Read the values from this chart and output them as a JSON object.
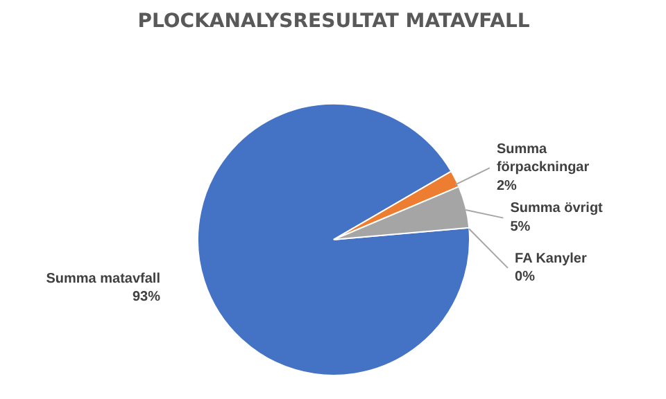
{
  "chart_data": {
    "type": "pie",
    "title": "PLOCKANALYSRESULTAT MATAVFALL",
    "categories": [
      "Summa matavfall",
      "Summa förpackningar",
      "Summa övrigt",
      "FA Kanyler"
    ],
    "values": [
      93,
      2,
      5,
      0
    ],
    "colors": [
      "#4472c4",
      "#ed7d31",
      "#a5a5a5",
      "#ffc000"
    ],
    "value_labels": [
      "93%",
      "2%",
      "5%",
      "0%"
    ]
  }
}
